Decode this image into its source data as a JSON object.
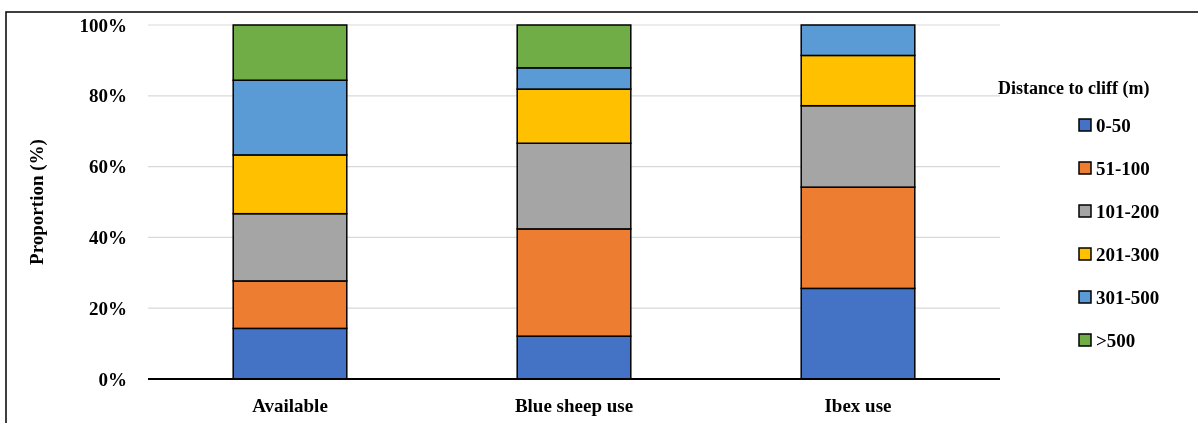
{
  "chart_data": {
    "type": "bar",
    "stacked": true,
    "ylabel": "Proportion (%)",
    "legend_title": "Distance to cliff (m)",
    "legend": "right",
    "grid": "y",
    "categories": [
      "Available",
      "Blue sheep use",
      "Ibex use"
    ],
    "ylim": [
      0,
      100
    ],
    "yticks": [
      {
        "value": 0,
        "label": "0%"
      },
      {
        "value": 20,
        "label": "20%"
      },
      {
        "value": 40,
        "label": "40%"
      },
      {
        "value": 60,
        "label": "60%"
      },
      {
        "value": 80,
        "label": "80%"
      },
      {
        "value": 100,
        "label": "100%"
      }
    ],
    "series": [
      {
        "name": "0-50",
        "color": "#4472c4",
        "values": [
          14.3,
          12.1,
          25.6
        ]
      },
      {
        "name": "51-100",
        "color": "#ed7d31",
        "values": [
          13.4,
          30.3,
          28.6
        ]
      },
      {
        "name": "101-200",
        "color": "#a5a5a5",
        "values": [
          19.0,
          24.2,
          23.0
        ]
      },
      {
        "name": "201-300",
        "color": "#ffc000",
        "values": [
          16.6,
          15.3,
          14.2
        ]
      },
      {
        "name": "301-500",
        "color": "#5b9bd5",
        "values": [
          21.1,
          6.0,
          8.6
        ]
      },
      {
        "name": ">500",
        "color": "#70ad47",
        "values": [
          15.6,
          12.1,
          0
        ]
      }
    ]
  }
}
